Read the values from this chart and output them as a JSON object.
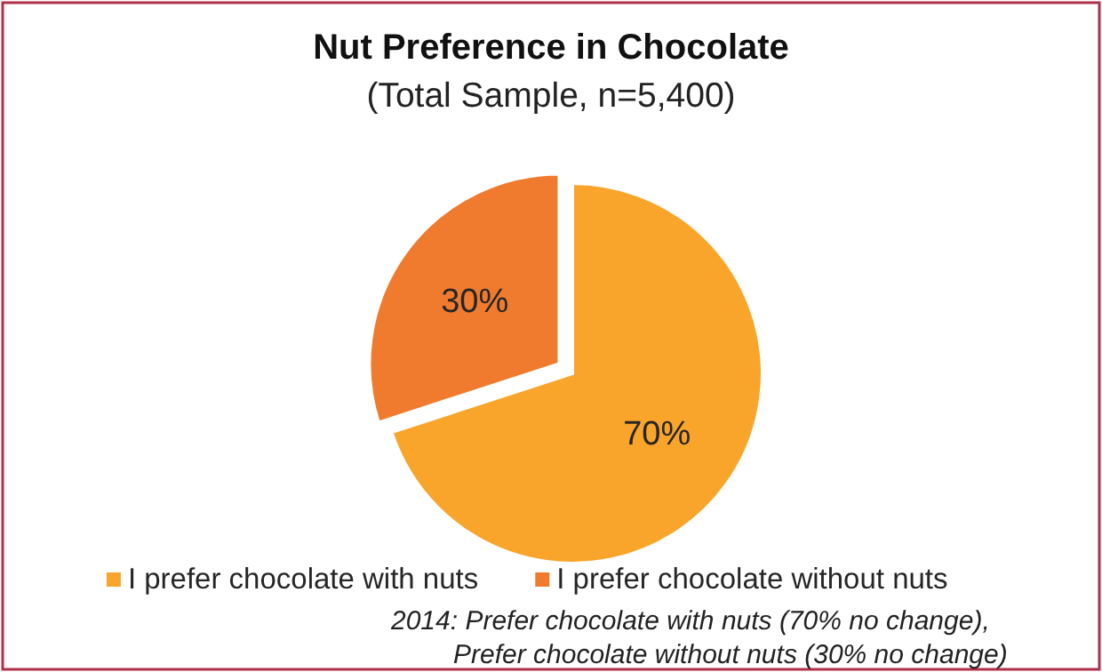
{
  "chart_data": {
    "type": "pie",
    "title": "Nut Preference in Chocolate",
    "subtitle": "(Total Sample, n=5,400)",
    "categories": [
      "I prefer chocolate with nuts",
      "I prefer chocolate without nuts"
    ],
    "values": [
      70,
      30
    ],
    "colors": [
      "#f9a52b",
      "#f07b2f"
    ],
    "value_labels": [
      "70%",
      "30%"
    ],
    "legend": "bottom",
    "annotations": [
      "2014: Prefer chocolate with nuts (70% no change),",
      "Prefer chocolate without nuts (30% no change)"
    ]
  }
}
